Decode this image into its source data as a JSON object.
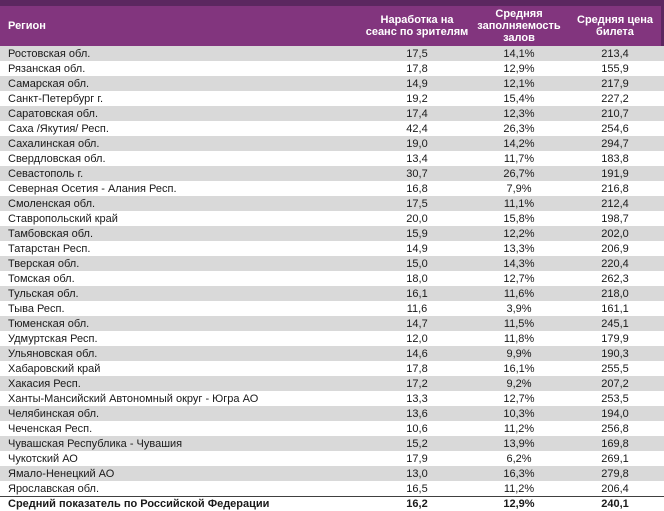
{
  "colors": {
    "strip": "#5c2760",
    "header_bg": "#82357e",
    "header_text": "#ffffff",
    "row_alt_bg": "#d9d9d9",
    "row_bg": "#ffffff",
    "text": "#1a1a1a",
    "summary_border": "#404040"
  },
  "table": {
    "columns": [
      {
        "label": "Регион"
      },
      {
        "label": "Наработка на сеанс по зрителям"
      },
      {
        "label": "Средняя заполняемость залов"
      },
      {
        "label": "Средняя цена билета"
      }
    ],
    "rows": [
      {
        "region": "Ростовская обл.",
        "per_session": "17,5",
        "occupancy": "14,1%",
        "price": "213,4"
      },
      {
        "region": "Рязанская обл.",
        "per_session": "17,8",
        "occupancy": "12,9%",
        "price": "155,9"
      },
      {
        "region": "Самарская обл.",
        "per_session": "14,9",
        "occupancy": "12,1%",
        "price": "217,9"
      },
      {
        "region": "Санкт-Петербург г.",
        "per_session": "19,2",
        "occupancy": "15,4%",
        "price": "227,2"
      },
      {
        "region": "Саратовская обл.",
        "per_session": "17,4",
        "occupancy": "12,3%",
        "price": "210,7"
      },
      {
        "region": "Саха /Якутия/ Респ.",
        "per_session": "42,4",
        "occupancy": "26,3%",
        "price": "254,6"
      },
      {
        "region": "Сахалинская обл.",
        "per_session": "19,0",
        "occupancy": "14,2%",
        "price": "294,7"
      },
      {
        "region": "Свердловская обл.",
        "per_session": "13,4",
        "occupancy": "11,7%",
        "price": "183,8"
      },
      {
        "region": "Севастополь г.",
        "per_session": "30,7",
        "occupancy": "26,7%",
        "price": "191,9"
      },
      {
        "region": "Северная Осетия - Алания Респ.",
        "per_session": "16,8",
        "occupancy": "7,9%",
        "price": "216,8"
      },
      {
        "region": "Смоленская обл.",
        "per_session": "17,5",
        "occupancy": "11,1%",
        "price": "212,4"
      },
      {
        "region": "Ставропольский край",
        "per_session": "20,0",
        "occupancy": "15,8%",
        "price": "198,7"
      },
      {
        "region": "Тамбовская обл.",
        "per_session": "15,9",
        "occupancy": "12,2%",
        "price": "202,0"
      },
      {
        "region": "Татарстан Респ.",
        "per_session": "14,9",
        "occupancy": "13,3%",
        "price": "206,9"
      },
      {
        "region": "Тверская обл.",
        "per_session": "15,0",
        "occupancy": "14,3%",
        "price": "220,4"
      },
      {
        "region": "Томская обл.",
        "per_session": "18,0",
        "occupancy": "12,7%",
        "price": "262,3"
      },
      {
        "region": "Тульская обл.",
        "per_session": "16,1",
        "occupancy": "11,6%",
        "price": "218,0"
      },
      {
        "region": "Тыва Респ.",
        "per_session": "11,6",
        "occupancy": "3,9%",
        "price": "161,1"
      },
      {
        "region": "Тюменская обл.",
        "per_session": "14,7",
        "occupancy": "11,5%",
        "price": "245,1"
      },
      {
        "region": "Удмуртская Респ.",
        "per_session": "12,0",
        "occupancy": "11,8%",
        "price": "179,9"
      },
      {
        "region": "Ульяновская обл.",
        "per_session": "14,6",
        "occupancy": "9,9%",
        "price": "190,3"
      },
      {
        "region": "Хабаровский край",
        "per_session": "17,8",
        "occupancy": "16,1%",
        "price": "255,5"
      },
      {
        "region": "Хакасия Респ.",
        "per_session": "17,2",
        "occupancy": "9,2%",
        "price": "207,2"
      },
      {
        "region": "Ханты-Мансийский Автономный округ - Югра АО",
        "per_session": "13,3",
        "occupancy": "12,7%",
        "price": "253,5"
      },
      {
        "region": "Челябинская обл.",
        "per_session": "13,6",
        "occupancy": "10,3%",
        "price": "194,0"
      },
      {
        "region": "Чеченская Респ.",
        "per_session": "10,6",
        "occupancy": "11,2%",
        "price": "256,8"
      },
      {
        "region": "Чувашская Республика - Чувашия",
        "per_session": "15,2",
        "occupancy": "13,9%",
        "price": "169,8"
      },
      {
        "region": "Чукотский АО",
        "per_session": "17,9",
        "occupancy": "6,2%",
        "price": "269,1"
      },
      {
        "region": "Ямало-Ненецкий АО",
        "per_session": "13,0",
        "occupancy": "16,3%",
        "price": "279,8"
      },
      {
        "region": "Ярославская обл.",
        "per_session": "16,5",
        "occupancy": "11,2%",
        "price": "206,4"
      }
    ],
    "summary": {
      "region": "Средний показатель по Российской Федерации",
      "per_session": "16,2",
      "occupancy": "12,9%",
      "price": "240,1"
    }
  }
}
